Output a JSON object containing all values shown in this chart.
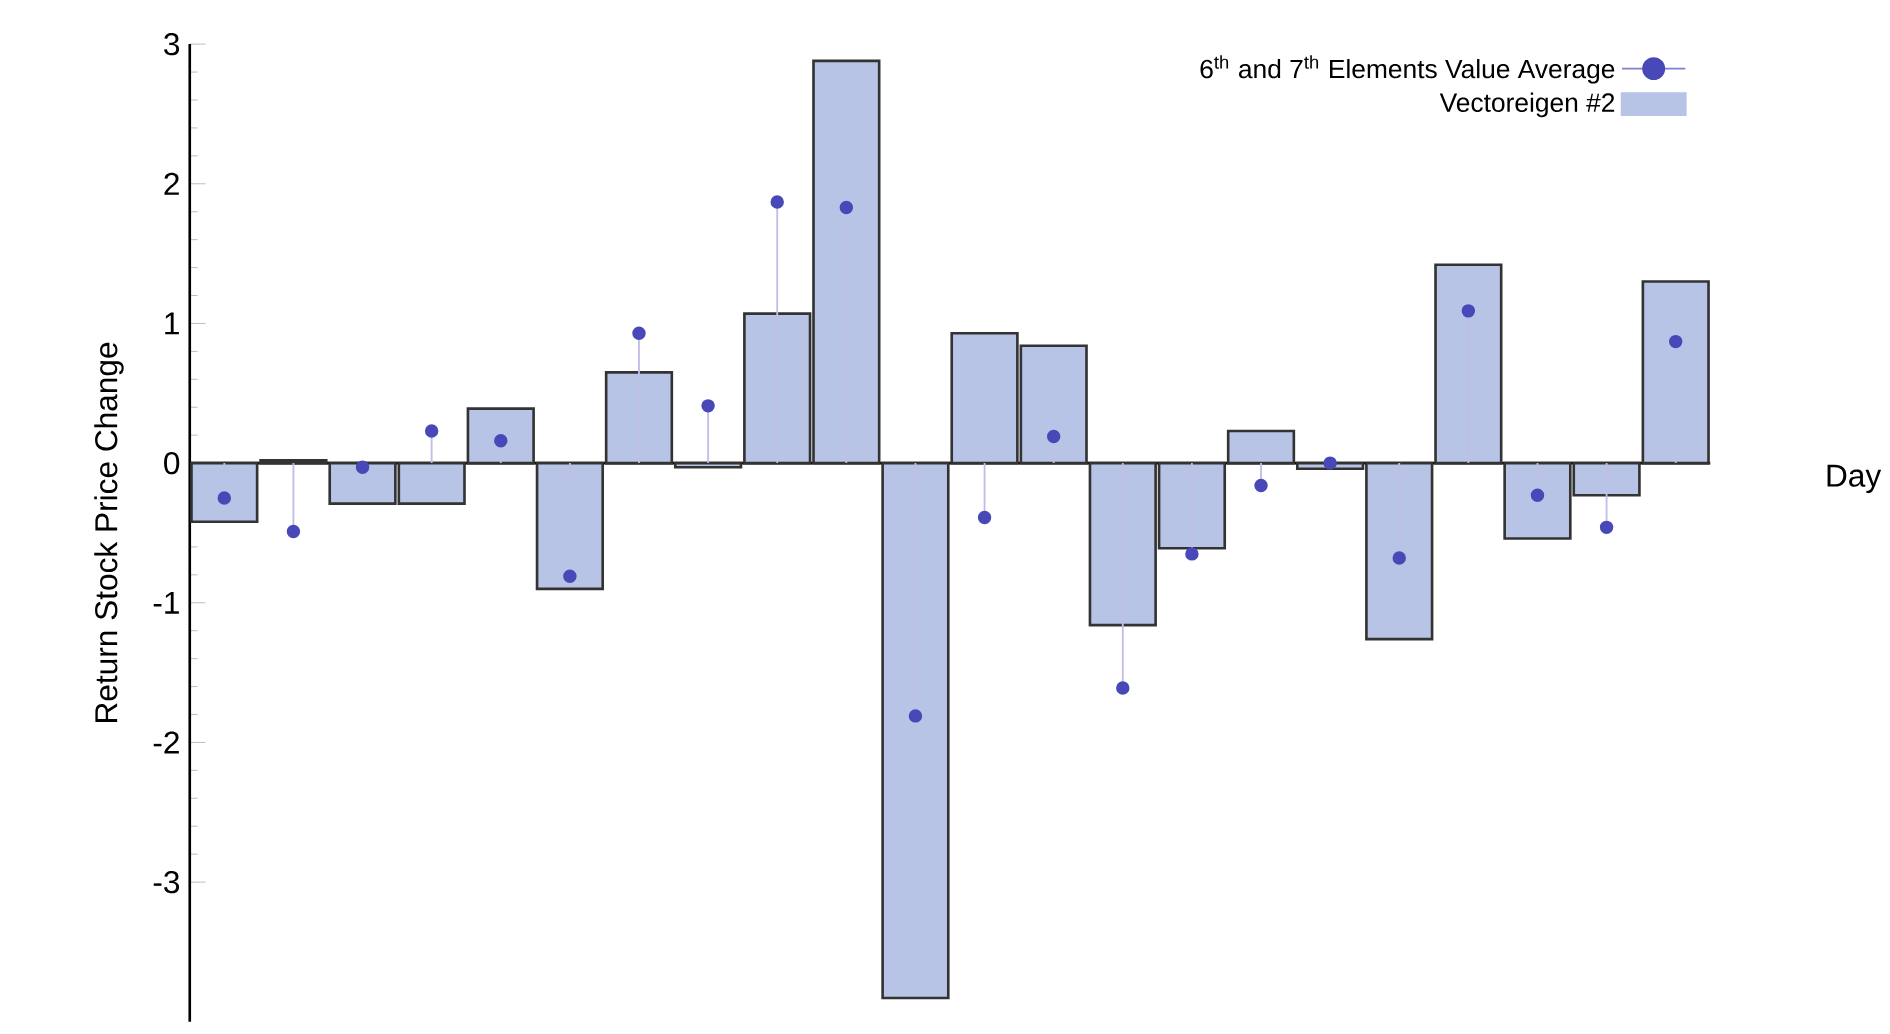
{
  "chart_data": {
    "type": "bar",
    "ylabel": "Return Stock Price Change",
    "xlabel": "Day",
    "categories": [
      null,
      null,
      null,
      null,
      null,
      null,
      null,
      null,
      null,
      null,
      null,
      null,
      null,
      null,
      null,
      null,
      null,
      null,
      null,
      null,
      null,
      null
    ],
    "series": [
      {
        "name": "6$^{th}$ and 7$^{th}$ Elements Value Average",
        "type": "lollipop",
        "color": "#4848b8",
        "marker": "circle",
        "values": [
          -0.25,
          -0.49,
          -0.03,
          0.23,
          0.16,
          -0.81,
          0.93,
          0.41,
          1.87,
          1.83,
          -1.81,
          -0.39,
          0.19,
          -1.61,
          -0.65,
          -0.16,
          0.0,
          -0.68,
          1.09,
          -0.23,
          -0.46,
          0.87
        ]
      },
      {
        "name": "Vectoreigen #2",
        "color": "#b8c4e6",
        "values": [
          -0.42,
          0.02,
          -0.29,
          -0.29,
          0.39,
          -0.9,
          0.65,
          -0.03,
          1.07,
          2.88,
          -3.83,
          0.93,
          0.84,
          -1.16,
          -0.61,
          0.23,
          -0.04,
          -1.26,
          1.42,
          -0.54,
          -0.23,
          1.3
        ]
      }
    ],
    "ylim": [
      -4,
      3
    ],
    "yticks": [
      -3,
      -2,
      -1,
      0,
      1,
      2,
      3
    ],
    "tick_labels": "y",
    "legend": "top right"
  }
}
